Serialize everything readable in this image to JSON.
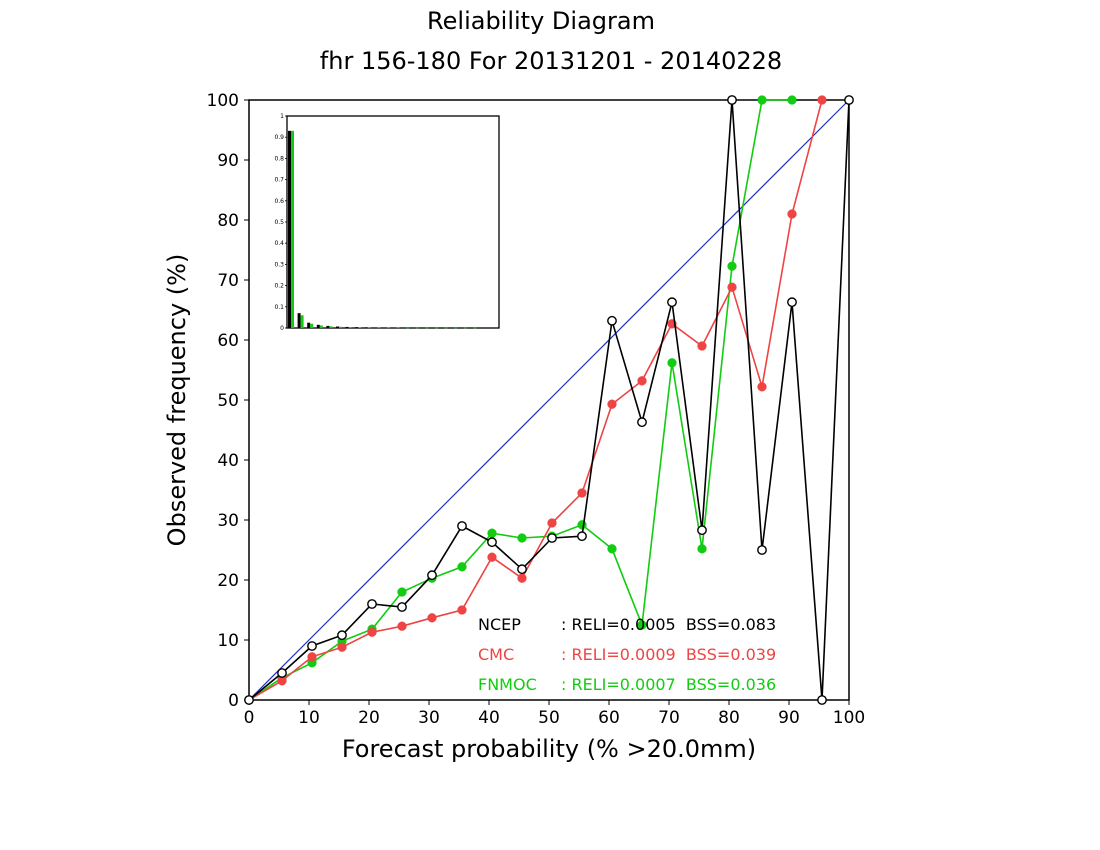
{
  "chart_data": {
    "type": "line",
    "title": "Reliability Diagram",
    "subtitle": "fhr 156-180 For 20131201 - 20140228",
    "xlabel": "Forecast probability (% >20.0mm)",
    "ylabel": "Observed frequency (%)",
    "xlim": [
      0,
      100
    ],
    "ylim": [
      0,
      100
    ],
    "x_ticks": [
      "0",
      "10",
      "20",
      "30",
      "40",
      "50",
      "60",
      "70",
      "80",
      "90",
      "100"
    ],
    "y_ticks": [
      "0",
      "10",
      "20",
      "30",
      "40",
      "50",
      "60",
      "70",
      "80",
      "90",
      "100"
    ],
    "grid": false,
    "reference_line": {
      "from": [
        0,
        0
      ],
      "to": [
        100,
        100
      ],
      "color": "#2233bb"
    },
    "series": [
      {
        "name": "NCEP",
        "color": "#000000",
        "marker": "open-circle",
        "x": [
          0,
          5.5,
          10.5,
          15.5,
          20.5,
          25.5,
          30.5,
          35.5,
          40.5,
          45.5,
          50.5,
          55.5,
          60.5,
          65.5,
          70.5,
          75.5,
          80.5,
          85.5,
          90.5,
          95.5,
          100
        ],
        "y": [
          0,
          4.5,
          9,
          10.8,
          16,
          15.5,
          20.8,
          29,
          26.3,
          21.8,
          27,
          27.3,
          63.2,
          46.3,
          66.3,
          28.3,
          100,
          25,
          66.3,
          0,
          100
        ]
      },
      {
        "name": "CMC",
        "color": "#ee4444",
        "marker": "filled-circle",
        "x": [
          0,
          5.5,
          10.5,
          15.5,
          20.5,
          25.5,
          30.5,
          35.5,
          40.5,
          45.5,
          50.5,
          55.5,
          60.5,
          65.5,
          70.5,
          75.5,
          80.5,
          85.5,
          90.5,
          95.5
        ],
        "y": [
          0,
          3.2,
          7.2,
          8.8,
          11.3,
          12.3,
          13.7,
          15,
          23.8,
          20.3,
          29.5,
          34.5,
          49.3,
          53.2,
          62.7,
          59,
          68.8,
          52.2,
          81,
          100
        ]
      },
      {
        "name": "FNMOC",
        "color": "#11cc11",
        "marker": "filled-circle",
        "x": [
          0,
          5.5,
          10.5,
          15.5,
          20.5,
          25.5,
          30.5,
          35.5,
          40.5,
          45.5,
          50.5,
          55.5,
          60.5,
          65.5,
          70.5,
          75.5,
          80.5,
          85.5,
          90.5
        ],
        "y": [
          0,
          3.7,
          6.2,
          9.8,
          11.8,
          18,
          20.3,
          22.2,
          27.8,
          27,
          27.3,
          29.2,
          25.2,
          12.5,
          56.2,
          25.2,
          72.3,
          100,
          100
        ]
      }
    ],
    "legend": [
      {
        "name": "NCEP",
        "stats": ": RELI=0.0005  BSS=0.083",
        "color": "#000000"
      },
      {
        "name": "CMC",
        "stats": ": RELI=0.0009  BSS=0.039",
        "color": "#ee4444"
      },
      {
        "name": "FNMOC",
        "stats": ": RELI=0.0007  BSS=0.036",
        "color": "#11cc11"
      }
    ],
    "legend_placement": "bottom-right",
    "inset_histogram": {
      "type": "bar",
      "placement": "top-left",
      "ylim": [
        0,
        1
      ],
      "y_ticks": [
        "0",
        "0.1",
        "0.2",
        "0.3",
        "0.4",
        "0.5",
        "0.6",
        "0.7",
        "0.8",
        "0.9",
        "1"
      ],
      "series": [
        {
          "name": "NCEP",
          "color": "#000000",
          "values": [
            0.93,
            0.07,
            0.025,
            0.015,
            0.01,
            0.007,
            0.005,
            0.004,
            0.003,
            0.002,
            0.002,
            0.002,
            0.001,
            0.001,
            0.001,
            0.001,
            0.001,
            0.001,
            0.001,
            0.001
          ]
        },
        {
          "name": "FNMOC",
          "color": "#11cc11",
          "values": [
            0.93,
            0.06,
            0.02,
            0.012,
            0.008,
            0.006,
            0.004,
            0.003,
            0.002,
            0.002,
            0.002,
            0.002,
            0.001,
            0.001,
            0.001,
            0.001,
            0.001,
            0.001,
            0.001,
            0.001
          ]
        }
      ]
    }
  }
}
